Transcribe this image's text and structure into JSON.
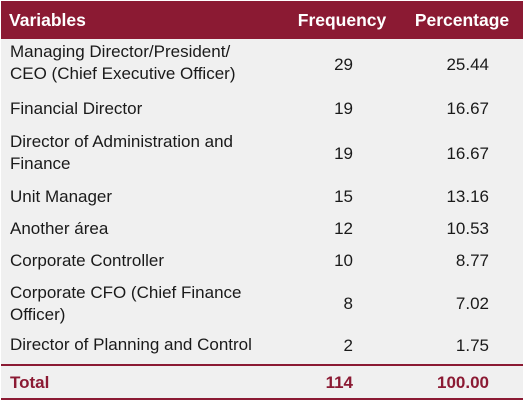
{
  "chart_data": {
    "type": "table",
    "columns": [
      "Variables",
      "Frequency",
      "Percentage"
    ],
    "rows": [
      {
        "variable": "Managing Director/President/\nCEO (Chief Executive Officer)",
        "frequency": "29",
        "percentage": "25.44"
      },
      {
        "variable": "Financial Director",
        "frequency": "19",
        "percentage": "16.67"
      },
      {
        "variable": "Director of Administration and\nFinance",
        "frequency": "19",
        "percentage": "16.67"
      },
      {
        "variable": "Unit Manager",
        "frequency": "15",
        "percentage": "13.16"
      },
      {
        "variable": "Another área",
        "frequency": "12",
        "percentage": "10.53"
      },
      {
        "variable": "Corporate Controller",
        "frequency": "10",
        "percentage": "8.77"
      },
      {
        "variable": "Corporate CFO (Chief Finance\nOfficer)",
        "frequency": "8",
        "percentage": "7.02"
      },
      {
        "variable": "Director of Planning and Control",
        "frequency": "2",
        "percentage": "1.75"
      }
    ],
    "total": {
      "label": "Total",
      "frequency": "114",
      "percentage": "100.00"
    }
  },
  "colors": {
    "header_background": "#8b1a33",
    "header_text": "#ffffff",
    "body_background": "#f0f0f0",
    "total_text": "#8b1a33"
  }
}
